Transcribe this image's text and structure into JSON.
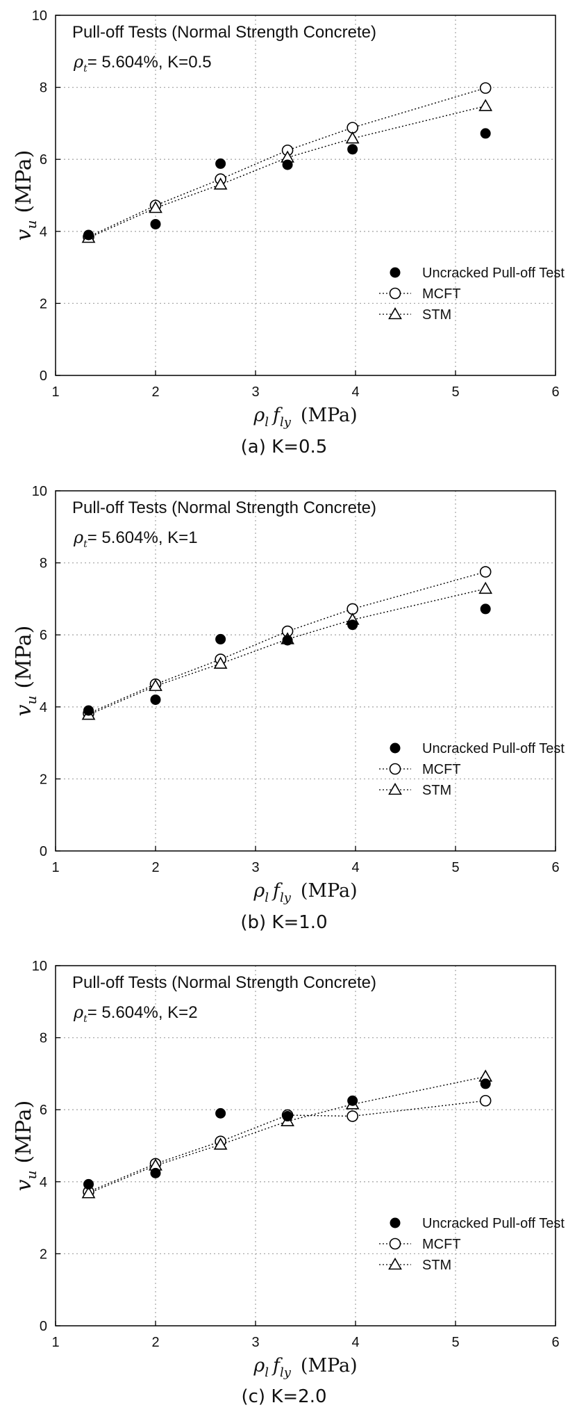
{
  "chart_data": [
    {
      "type": "scatter",
      "title": "Pull-off Tests (Normal Strength Concrete)",
      "subtitle": {
        "symbol": "ρt",
        "text": "= 5.604%, K=0.5"
      },
      "caption": "(a) K=0.5",
      "xlabel": {
        "main": "ρl fly",
        "unit": "(MPa)"
      },
      "ylabel": {
        "main": "vu",
        "unit": "(MPa)"
      },
      "xlim": [
        1,
        6
      ],
      "ylim": [
        0,
        10
      ],
      "xticks": [
        "1",
        "2",
        "3",
        "4",
        "5",
        "6"
      ],
      "yticks": [
        "0",
        "2",
        "4",
        "6",
        "8",
        "10"
      ],
      "grid": true,
      "legend_position": "lower-right",
      "x": [
        1.33,
        2.0,
        2.65,
        3.32,
        3.97,
        5.3
      ],
      "series": [
        {
          "name": "Uncracked Pull-off Test",
          "marker": "filled-circle",
          "line": false,
          "values": [
            3.9,
            4.2,
            5.88,
            5.85,
            6.28,
            6.72
          ]
        },
        {
          "name": "MCFT",
          "marker": "open-circle",
          "line": true,
          "values": [
            3.85,
            4.72,
            5.45,
            6.25,
            6.88,
            7.98
          ]
        },
        {
          "name": "STM",
          "marker": "open-triangle",
          "line": true,
          "values": [
            3.82,
            4.65,
            5.3,
            6.05,
            6.58,
            7.48
          ]
        }
      ]
    },
    {
      "type": "scatter",
      "title": "Pull-off Tests (Normal Strength Concrete)",
      "subtitle": {
        "symbol": "ρt",
        "text": "= 5.604%, K=1"
      },
      "caption": "(b) K=1.0",
      "xlabel": {
        "main": "ρl fly",
        "unit": "(MPa)"
      },
      "ylabel": {
        "main": "vu",
        "unit": "(MPa)"
      },
      "xlim": [
        1,
        6
      ],
      "ylim": [
        0,
        10
      ],
      "xticks": [
        "1",
        "2",
        "3",
        "4",
        "5",
        "6"
      ],
      "yticks": [
        "0",
        "2",
        "4",
        "6",
        "8",
        "10"
      ],
      "grid": true,
      "legend_position": "lower-right",
      "x": [
        1.33,
        2.0,
        2.65,
        3.32,
        3.97,
        5.3
      ],
      "series": [
        {
          "name": "Uncracked Pull-off Test",
          "marker": "filled-circle",
          "line": false,
          "values": [
            3.9,
            4.2,
            5.88,
            5.85,
            6.28,
            6.72
          ]
        },
        {
          "name": "MCFT",
          "marker": "open-circle",
          "line": true,
          "values": [
            3.82,
            4.63,
            5.32,
            6.1,
            6.72,
            7.75
          ]
        },
        {
          "name": "STM",
          "marker": "open-triangle",
          "line": true,
          "values": [
            3.78,
            4.58,
            5.2,
            5.88,
            6.42,
            7.28
          ]
        }
      ]
    },
    {
      "type": "scatter",
      "title": "Pull-off Tests (Normal Strength Concrete)",
      "subtitle": {
        "symbol": "ρt",
        "text": "= 5.604%, K=2"
      },
      "caption": "(c) K=2.0",
      "xlabel": {
        "main": "ρl fly",
        "unit": "(MPa)"
      },
      "ylabel": {
        "main": "vu",
        "unit": "(MPa)"
      },
      "xlim": [
        1,
        6
      ],
      "ylim": [
        0,
        10
      ],
      "xticks": [
        "1",
        "2",
        "3",
        "4",
        "5",
        "6"
      ],
      "yticks": [
        "0",
        "2",
        "4",
        "6",
        "8",
        "10"
      ],
      "grid": true,
      "legend_position": "lower-right",
      "x": [
        1.33,
        2.0,
        2.65,
        3.32,
        3.97,
        5.3
      ],
      "series": [
        {
          "name": "Uncracked Pull-off Test",
          "marker": "filled-circle",
          "line": false,
          "values": [
            3.93,
            4.24,
            5.9,
            5.82,
            6.25,
            6.72
          ]
        },
        {
          "name": "MCFT",
          "marker": "open-circle",
          "line": true,
          "values": [
            3.72,
            4.5,
            5.12,
            5.85,
            5.82,
            6.25
          ]
        },
        {
          "name": "STM",
          "marker": "open-triangle",
          "line": true,
          "values": [
            3.68,
            4.45,
            5.03,
            5.68,
            6.15,
            6.92
          ]
        }
      ]
    }
  ]
}
